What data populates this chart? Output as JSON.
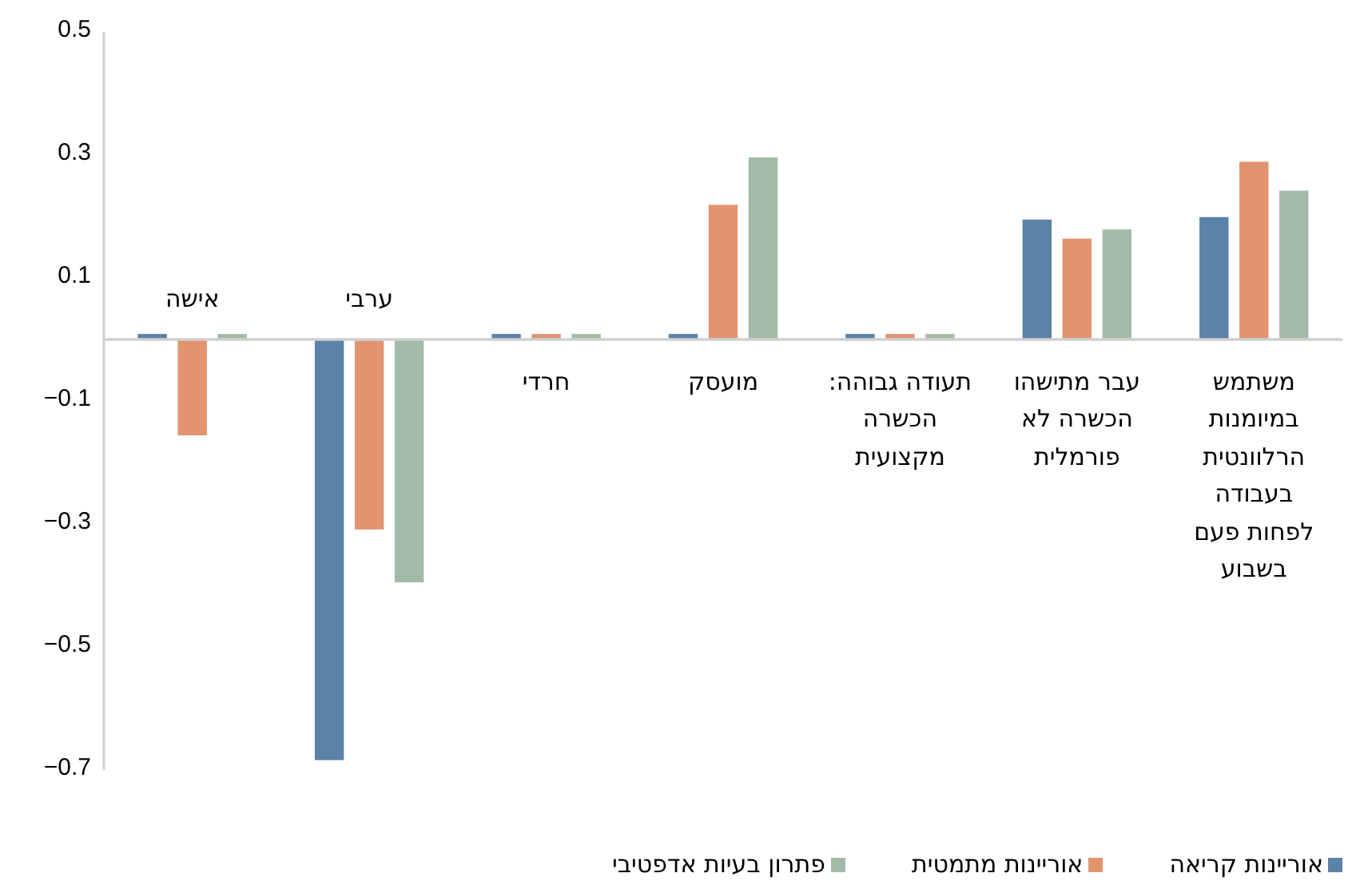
{
  "chart_data": {
    "type": "bar",
    "categories": [
      "אישה",
      "ערבי",
      "חרדי",
      "מועסק",
      "תעודה גבוהה: הכשרה מקצועית",
      "עבר מתישהו הכשרה לא פורמלית",
      "משתמש במיומנות הרלוונטית בעבודה לפחות פעם בשבוע"
    ],
    "series": [
      {
        "name": "אוריינות קריאה",
        "color": "#5b82a8",
        "values": [
          0.01,
          -0.685,
          0.01,
          0.01,
          0.01,
          0.196,
          0.2
        ]
      },
      {
        "name": "אוריינות מתמטית",
        "color": "#e2946e",
        "values": [
          -0.157,
          -0.31,
          0.01,
          0.22,
          0.01,
          0.165,
          0.29
        ]
      },
      {
        "name": "פתרון בעיות אדפטיבי",
        "color": "#a2bba8",
        "values": [
          0.01,
          -0.396,
          0.01,
          0.297,
          0.01,
          0.18,
          0.243
        ]
      }
    ],
    "ylim": [
      -0.7,
      0.5
    ],
    "yticks": [
      {
        "value": -0.7,
        "label": "−0.7"
      },
      {
        "value": -0.5,
        "label": "−0.5"
      },
      {
        "value": -0.3,
        "label": "−0.3"
      },
      {
        "value": -0.1,
        "label": "−0.1"
      },
      0.1,
      0.3,
      0.5
    ],
    "grid": false,
    "legend": "bottom"
  }
}
